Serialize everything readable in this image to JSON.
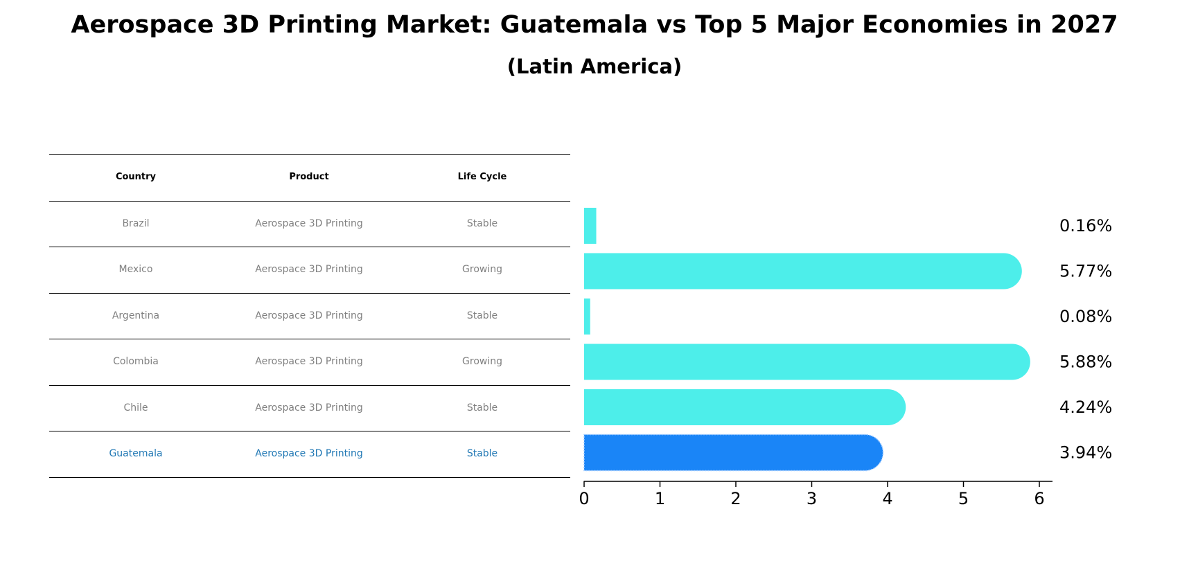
{
  "title": "Aerospace 3D Printing Market: Guatemala vs Top 5 Major Economies in 2027",
  "subtitle": "(Latin America)",
  "table": {
    "headers": [
      "Country",
      "Product",
      "Life Cycle"
    ],
    "rows": [
      [
        "Brazil",
        "Aerospace 3D Printing",
        "Stable"
      ],
      [
        "Mexico",
        "Aerospace 3D Printing",
        "Growing"
      ],
      [
        "Argentina",
        "Aerospace 3D Printing",
        "Stable"
      ],
      [
        "Colombia",
        "Aerospace 3D Printing",
        "Growing"
      ],
      [
        "Chile",
        "Aerospace 3D Printing",
        "Stable"
      ],
      [
        "Guatemala",
        "Aerospace 3D Printing",
        "Stable"
      ]
    ],
    "text_color": "#808080",
    "highlight_color": "#1f77b4"
  },
  "chart_data": {
    "type": "bar",
    "orientation": "horizontal",
    "categories": [
      "Brazil",
      "Mexico",
      "Argentina",
      "Colombia",
      "Chile",
      "Guatemala"
    ],
    "values": [
      0.16,
      5.77,
      0.08,
      5.88,
      4.24,
      3.94
    ],
    "value_labels": [
      "0.16%",
      "5.77%",
      "0.08%",
      "5.88%",
      "4.24%",
      "3.94%"
    ],
    "xlim": [
      0,
      6.2
    ],
    "xticks": [
      0,
      1,
      2,
      3,
      4,
      5,
      6
    ],
    "xticklabels": [
      "0",
      "1",
      "2",
      "3",
      "4",
      "5",
      "6"
    ],
    "grid": false,
    "colors": {
      "default": "#4deeea",
      "highlight": "#1a85f7"
    },
    "highlight": "Guatemala"
  }
}
